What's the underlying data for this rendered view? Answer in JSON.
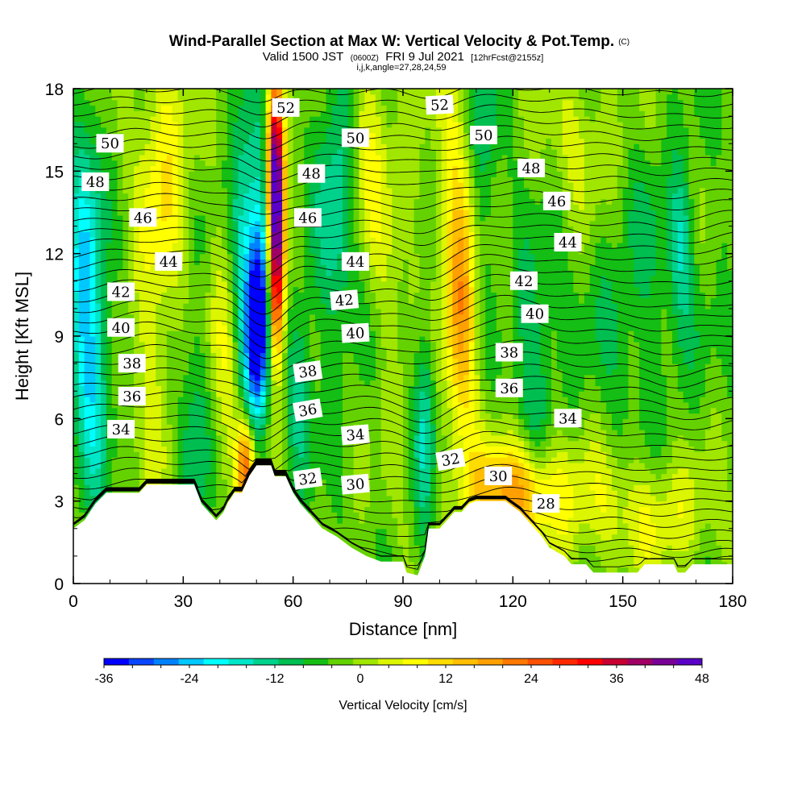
{
  "header": {
    "title": "Wind-Parallel Section at Max W: Vertical Velocity & Pot.Temp.",
    "copyright": "(C)",
    "valid_prefix": "Valid 1500 JST",
    "valid_utc": "(0600Z)",
    "valid_date": "FRI 9 Jul 2021",
    "forecast": "[12hrFcst@2155z]",
    "section_params": "i,j,k,angle=27,28,24,59"
  },
  "chart_data": {
    "type": "heatmap",
    "title": "Wind-Parallel Section at Max W: Vertical Velocity & Pot.Temp.",
    "xlabel": "Distance [nm]",
    "ylabel": "Height [Kft MSL]",
    "xlim": [
      0,
      180
    ],
    "ylim": [
      0,
      18
    ],
    "x_ticks": [
      "0",
      "30",
      "60",
      "90",
      "120",
      "150",
      "180"
    ],
    "y_ticks": [
      "0",
      "3",
      "6",
      "9",
      "12",
      "15",
      "18"
    ],
    "colorbar": {
      "label": "Vertical Velocity [cm/s]",
      "range": [
        -36,
        48
      ],
      "step": 4,
      "tick_labels": [
        "-36",
        "-24",
        "-12",
        "0",
        "12",
        "24",
        "36",
        "48"
      ],
      "colors": [
        "#0000ff",
        "#0a46ff",
        "#0082ff",
        "#00c8ff",
        "#00ffff",
        "#00e6c8",
        "#00d28c",
        "#00be50",
        "#14be14",
        "#64d200",
        "#a0e600",
        "#dcf500",
        "#ffff00",
        "#ffdc00",
        "#ffbe00",
        "#ffa000",
        "#ff7800",
        "#ff5000",
        "#ff2800",
        "#ff0000",
        "#c80032",
        "#a00064",
        "#780096",
        "#5a00c8"
      ]
    },
    "velocity_features": [
      {
        "x": 3,
        "z": 11.5,
        "w": -20,
        "sx": 3,
        "sz": 4
      },
      {
        "x": 6,
        "z": 7.5,
        "w": -14,
        "sx": 3,
        "sz": 3
      },
      {
        "x": 22,
        "z": 12,
        "w": 10,
        "sx": 4,
        "sz": 6
      },
      {
        "x": 28,
        "z": 16,
        "w": 8,
        "sx": 4,
        "sz": 3
      },
      {
        "x": 50,
        "z": 9,
        "w": -32,
        "sx": 2.2,
        "sz": 2.2
      },
      {
        "x": 52,
        "z": 11.5,
        "w": -22,
        "sx": 2.5,
        "sz": 3
      },
      {
        "x": 47,
        "z": 13,
        "w": -14,
        "sx": 3,
        "sz": 4
      },
      {
        "x": 55,
        "z": 15.5,
        "w": 46,
        "sx": 1.6,
        "sz": 2.5
      },
      {
        "x": 55.5,
        "z": 12.5,
        "w": 36,
        "sx": 1.6,
        "sz": 2.5
      },
      {
        "x": 55,
        "z": 10,
        "w": 22,
        "sx": 1.8,
        "sz": 2
      },
      {
        "x": 47,
        "z": 4.3,
        "w": 30,
        "sx": 1.8,
        "sz": 1.2
      },
      {
        "x": 41,
        "z": 8,
        "w": 8,
        "sx": 3,
        "sz": 4
      },
      {
        "x": 72,
        "z": 14,
        "w": -14,
        "sx": 4,
        "sz": 4
      },
      {
        "x": 62,
        "z": 7,
        "w": -12,
        "sx": 2.5,
        "sz": 2.5
      },
      {
        "x": 80,
        "z": 16,
        "w": 10,
        "sx": 4,
        "sz": 3
      },
      {
        "x": 96,
        "z": 6,
        "w": -14,
        "sx": 2,
        "sz": 3
      },
      {
        "x": 106,
        "z": 9.5,
        "w": 20,
        "sx": 3,
        "sz": 3
      },
      {
        "x": 104,
        "z": 14,
        "w": 10,
        "sx": 4,
        "sz": 4
      },
      {
        "x": 118,
        "z": 3.5,
        "w": 18,
        "sx": 8,
        "sz": 1.2
      },
      {
        "x": 130,
        "z": 3,
        "w": 10,
        "sx": 12,
        "sz": 1.5
      },
      {
        "x": 126,
        "z": 8.5,
        "w": -10,
        "sx": 4,
        "sz": 3
      },
      {
        "x": 155,
        "z": 11,
        "w": -6,
        "sx": 12,
        "sz": 4
      },
      {
        "x": 166,
        "z": 12.5,
        "w": -10,
        "sx": 2,
        "sz": 2
      },
      {
        "x": 140,
        "z": 16,
        "w": 8,
        "sx": 8,
        "sz": 2
      },
      {
        "x": 160,
        "z": 2.5,
        "w": 10,
        "sx": 10,
        "sz": 1.5
      },
      {
        "x": 112,
        "z": 16,
        "w": -10,
        "sx": 3,
        "sz": 3
      },
      {
        "x": 33,
        "z": 5,
        "w": -10,
        "sx": 3,
        "sz": 3
      },
      {
        "x": 88,
        "z": 12,
        "w": 4,
        "sx": 5,
        "sz": 5
      }
    ],
    "terrain": [
      {
        "x": 0,
        "z": 2
      },
      {
        "x": 3,
        "z": 2.3
      },
      {
        "x": 6,
        "z": 2.9
      },
      {
        "x": 9,
        "z": 3.3
      },
      {
        "x": 12,
        "z": 3.3
      },
      {
        "x": 18,
        "z": 3.3
      },
      {
        "x": 20,
        "z": 3.6
      },
      {
        "x": 32,
        "z": 3.6
      },
      {
        "x": 33,
        "z": 3.6
      },
      {
        "x": 35,
        "z": 2.9
      },
      {
        "x": 37,
        "z": 2.6
      },
      {
        "x": 39,
        "z": 2.3
      },
      {
        "x": 41,
        "z": 2.6
      },
      {
        "x": 42,
        "z": 2.9
      },
      {
        "x": 44,
        "z": 3.3
      },
      {
        "x": 46,
        "z": 3.3
      },
      {
        "x": 48,
        "z": 3.9
      },
      {
        "x": 50,
        "z": 4.3
      },
      {
        "x": 54,
        "z": 4.3
      },
      {
        "x": 55,
        "z": 3.9
      },
      {
        "x": 58,
        "z": 3.9
      },
      {
        "x": 60,
        "z": 3.3
      },
      {
        "x": 62,
        "z": 2.9
      },
      {
        "x": 64,
        "z": 2.6
      },
      {
        "x": 66,
        "z": 2.3
      },
      {
        "x": 68,
        "z": 2.0
      },
      {
        "x": 72,
        "z": 1.7
      },
      {
        "x": 76,
        "z": 1.3
      },
      {
        "x": 80,
        "z": 1.0
      },
      {
        "x": 84,
        "z": 0.8
      },
      {
        "x": 90,
        "z": 0.8
      },
      {
        "x": 91,
        "z": 0.4
      },
      {
        "x": 94,
        "z": 0.3
      },
      {
        "x": 96,
        "z": 1.0
      },
      {
        "x": 97,
        "z": 2.0
      },
      {
        "x": 100,
        "z": 2.0
      },
      {
        "x": 102,
        "z": 2.3
      },
      {
        "x": 104,
        "z": 2.6
      },
      {
        "x": 106,
        "z": 2.6
      },
      {
        "x": 108,
        "z": 2.9
      },
      {
        "x": 110,
        "z": 3.0
      },
      {
        "x": 118,
        "z": 3.0
      },
      {
        "x": 122,
        "z": 2.6
      },
      {
        "x": 124,
        "z": 2.3
      },
      {
        "x": 126,
        "z": 2.0
      },
      {
        "x": 128,
        "z": 1.7
      },
      {
        "x": 130,
        "z": 1.3
      },
      {
        "x": 134,
        "z": 1.0
      },
      {
        "x": 136,
        "z": 0.7
      },
      {
        "x": 140,
        "z": 0.7
      },
      {
        "x": 142,
        "z": 0.4
      },
      {
        "x": 154,
        "z": 0.4
      },
      {
        "x": 156,
        "z": 0.7
      },
      {
        "x": 164,
        "z": 0.7
      },
      {
        "x": 165,
        "z": 0.4
      },
      {
        "x": 167,
        "z": 0.4
      },
      {
        "x": 169,
        "z": 0.7
      },
      {
        "x": 180,
        "z": 0.7
      }
    ],
    "isentropes": {
      "z_surface": [
        0.6,
        0.9,
        1.2,
        1.5,
        1.9,
        2.3,
        2.7,
        3.1,
        3.5,
        3.9,
        4.3,
        4.7,
        5.1,
        5.5,
        5.9,
        6.3,
        6.7,
        7.1,
        7.5,
        7.9,
        8.3,
        8.7,
        9.1,
        9.5,
        9.9,
        10.3,
        10.7,
        11.1,
        11.5,
        11.9,
        12.3,
        12.7,
        13.1,
        13.5,
        13.9,
        14.3,
        14.7,
        15.1,
        15.5,
        15.9,
        16.3,
        16.7,
        17.1,
        17.5,
        17.9
      ],
      "perturbations": [
        {
          "x": 52,
          "dz": -0.9,
          "s": 5
        },
        {
          "x": 97,
          "dz": -0.5,
          "s": 6
        },
        {
          "x": 118,
          "dz": 0.5,
          "s": 12
        },
        {
          "x": 20,
          "dz": 0.3,
          "s": 10
        },
        {
          "x": 165,
          "dz": -0.3,
          "s": 8
        }
      ]
    },
    "contour_labels": [
      {
        "text": "52",
        "x": 58,
        "z": 17.3,
        "angle": 0
      },
      {
        "text": "52",
        "x": 100,
        "z": 17.4,
        "angle": -3
      },
      {
        "text": "50",
        "x": 10,
        "z": 16.0,
        "angle": 0
      },
      {
        "text": "50",
        "x": 77,
        "z": 16.2,
        "angle": 0
      },
      {
        "text": "50",
        "x": 112,
        "z": 16.3,
        "angle": 0
      },
      {
        "text": "48",
        "x": 6,
        "z": 14.6,
        "angle": 0
      },
      {
        "text": "48",
        "x": 65,
        "z": 14.9,
        "angle": 0
      },
      {
        "text": "48",
        "x": 125,
        "z": 15.1,
        "angle": 0
      },
      {
        "text": "46",
        "x": 19,
        "z": 13.3,
        "angle": 0
      },
      {
        "text": "46",
        "x": 64,
        "z": 13.3,
        "angle": 0
      },
      {
        "text": "46",
        "x": 132,
        "z": 13.9,
        "angle": 0
      },
      {
        "text": "44",
        "x": 26,
        "z": 11.7,
        "angle": 0
      },
      {
        "text": "44",
        "x": 77,
        "z": 11.7,
        "angle": 0
      },
      {
        "text": "44",
        "x": 135,
        "z": 12.4,
        "angle": 0
      },
      {
        "text": "42",
        "x": 13,
        "z": 10.6,
        "angle": 0
      },
      {
        "text": "42",
        "x": 74,
        "z": 10.3,
        "angle": -5
      },
      {
        "text": "42",
        "x": 123,
        "z": 11.0,
        "angle": 0
      },
      {
        "text": "40",
        "x": 13,
        "z": 9.3,
        "angle": 0
      },
      {
        "text": "40",
        "x": 77,
        "z": 9.1,
        "angle": -3
      },
      {
        "text": "40",
        "x": 126,
        "z": 9.8,
        "angle": 0
      },
      {
        "text": "38",
        "x": 16,
        "z": 8.0,
        "angle": 0
      },
      {
        "text": "38",
        "x": 64,
        "z": 7.7,
        "angle": -8
      },
      {
        "text": "38",
        "x": 119,
        "z": 8.4,
        "angle": 0
      },
      {
        "text": "36",
        "x": 16,
        "z": 6.8,
        "angle": 0
      },
      {
        "text": "36",
        "x": 64,
        "z": 6.3,
        "angle": -10
      },
      {
        "text": "36",
        "x": 119,
        "z": 7.1,
        "angle": 0
      },
      {
        "text": "34",
        "x": 13,
        "z": 5.6,
        "angle": 0
      },
      {
        "text": "34",
        "x": 77,
        "z": 5.4,
        "angle": -5
      },
      {
        "text": "34",
        "x": 135,
        "z": 6.0,
        "angle": 0
      },
      {
        "text": "32",
        "x": 64,
        "z": 3.8,
        "angle": -8
      },
      {
        "text": "32",
        "x": 103,
        "z": 4.5,
        "angle": -10
      },
      {
        "text": "30",
        "x": 77,
        "z": 3.6,
        "angle": -5
      },
      {
        "text": "30",
        "x": 116,
        "z": 3.9,
        "angle": 0
      },
      {
        "text": "28",
        "x": 129,
        "z": 2.9,
        "angle": 0
      }
    ]
  }
}
